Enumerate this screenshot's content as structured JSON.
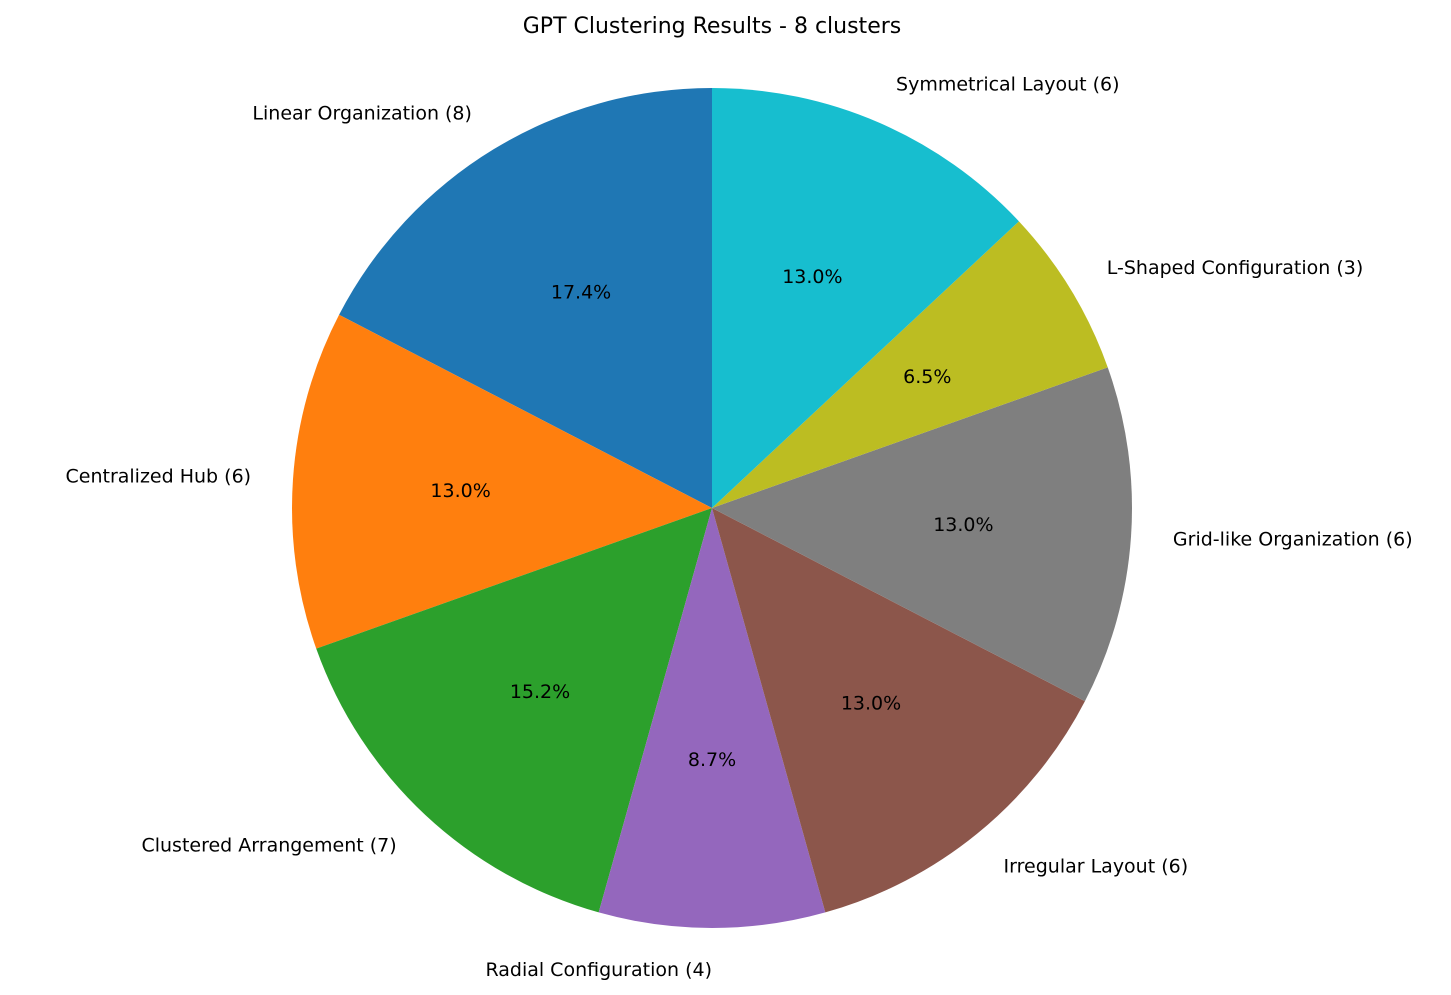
{
  "chart_data": {
    "type": "pie",
    "title": "GPT Clustering Results - 8 clusters",
    "start_angle_deg": 90,
    "direction": "counterclockwise",
    "slices": [
      {
        "label": "Linear Organization (8)",
        "value": 8,
        "pct_label": "17.4%",
        "color": "#1f77b4"
      },
      {
        "label": "Centralized Hub (6)",
        "value": 6,
        "pct_label": "13.0%",
        "color": "#ff7f0e"
      },
      {
        "label": "Clustered Arrangement (7)",
        "value": 7,
        "pct_label": "15.2%",
        "color": "#2ca02c"
      },
      {
        "label": "Radial Configuration (4)",
        "value": 4,
        "pct_label": "8.7%",
        "color": "#9467bd"
      },
      {
        "label": "Irregular Layout (6)",
        "value": 6,
        "pct_label": "13.0%",
        "color": "#8c564b"
      },
      {
        "label": "Grid-like Organization (6)",
        "value": 6,
        "pct_label": "13.0%",
        "color": "#7f7f7f"
      },
      {
        "label": "L-Shaped Configuration (3)",
        "value": 3,
        "pct_label": "6.5%",
        "color": "#bcbd22"
      },
      {
        "label": "Symmetrical Layout (6)",
        "value": 6,
        "pct_label": "13.0%",
        "color": "#17becf"
      }
    ]
  }
}
